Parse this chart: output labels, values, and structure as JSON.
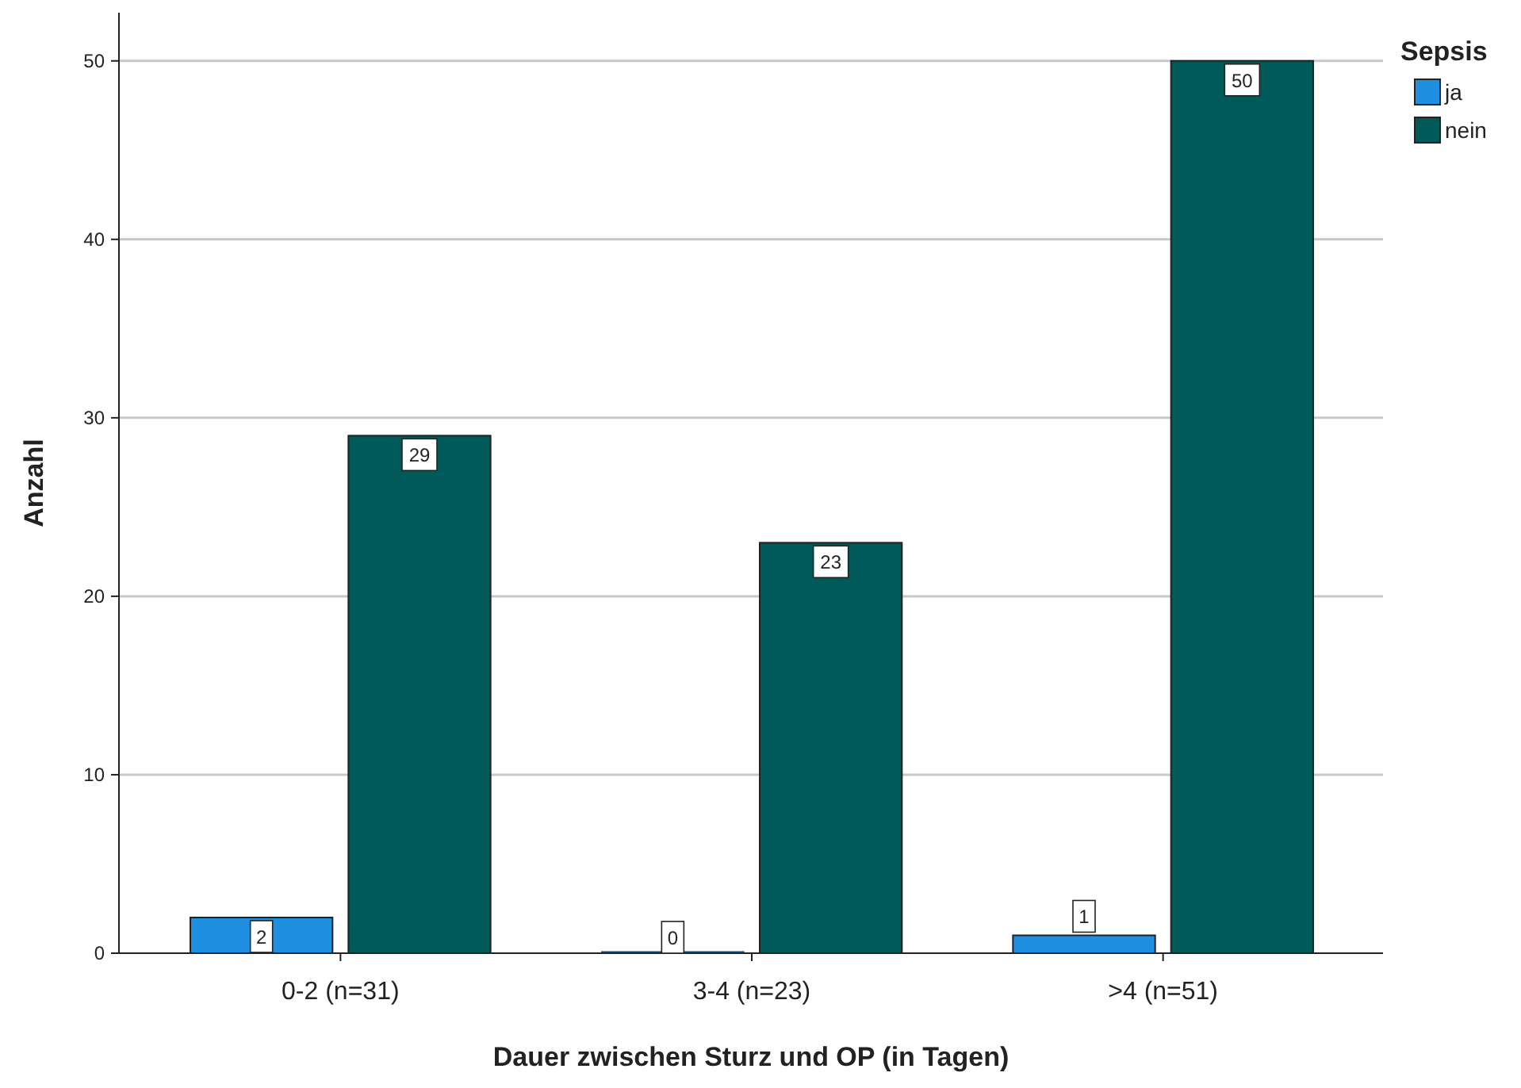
{
  "chart_data": {
    "type": "bar",
    "xlabel": "Dauer zwischen Sturz und OP (in Tagen)",
    "ylabel": "Anzahl",
    "legend_title": "Sepsis",
    "categories": [
      "0-2 (n=31)",
      "3-4 (n=23)",
      ">4 (n=51)"
    ],
    "series": [
      {
        "name": "ja",
        "color": "#1e8fe1",
        "values": [
          2,
          0,
          1
        ]
      },
      {
        "name": "nein",
        "color": "#005a5a",
        "values": [
          29,
          23,
          50
        ]
      }
    ],
    "ylim": [
      0,
      52.7
    ],
    "yticks": [
      0,
      10,
      20,
      30,
      40,
      50
    ],
    "grid": "y",
    "legend": "top right",
    "data_labels": true
  }
}
